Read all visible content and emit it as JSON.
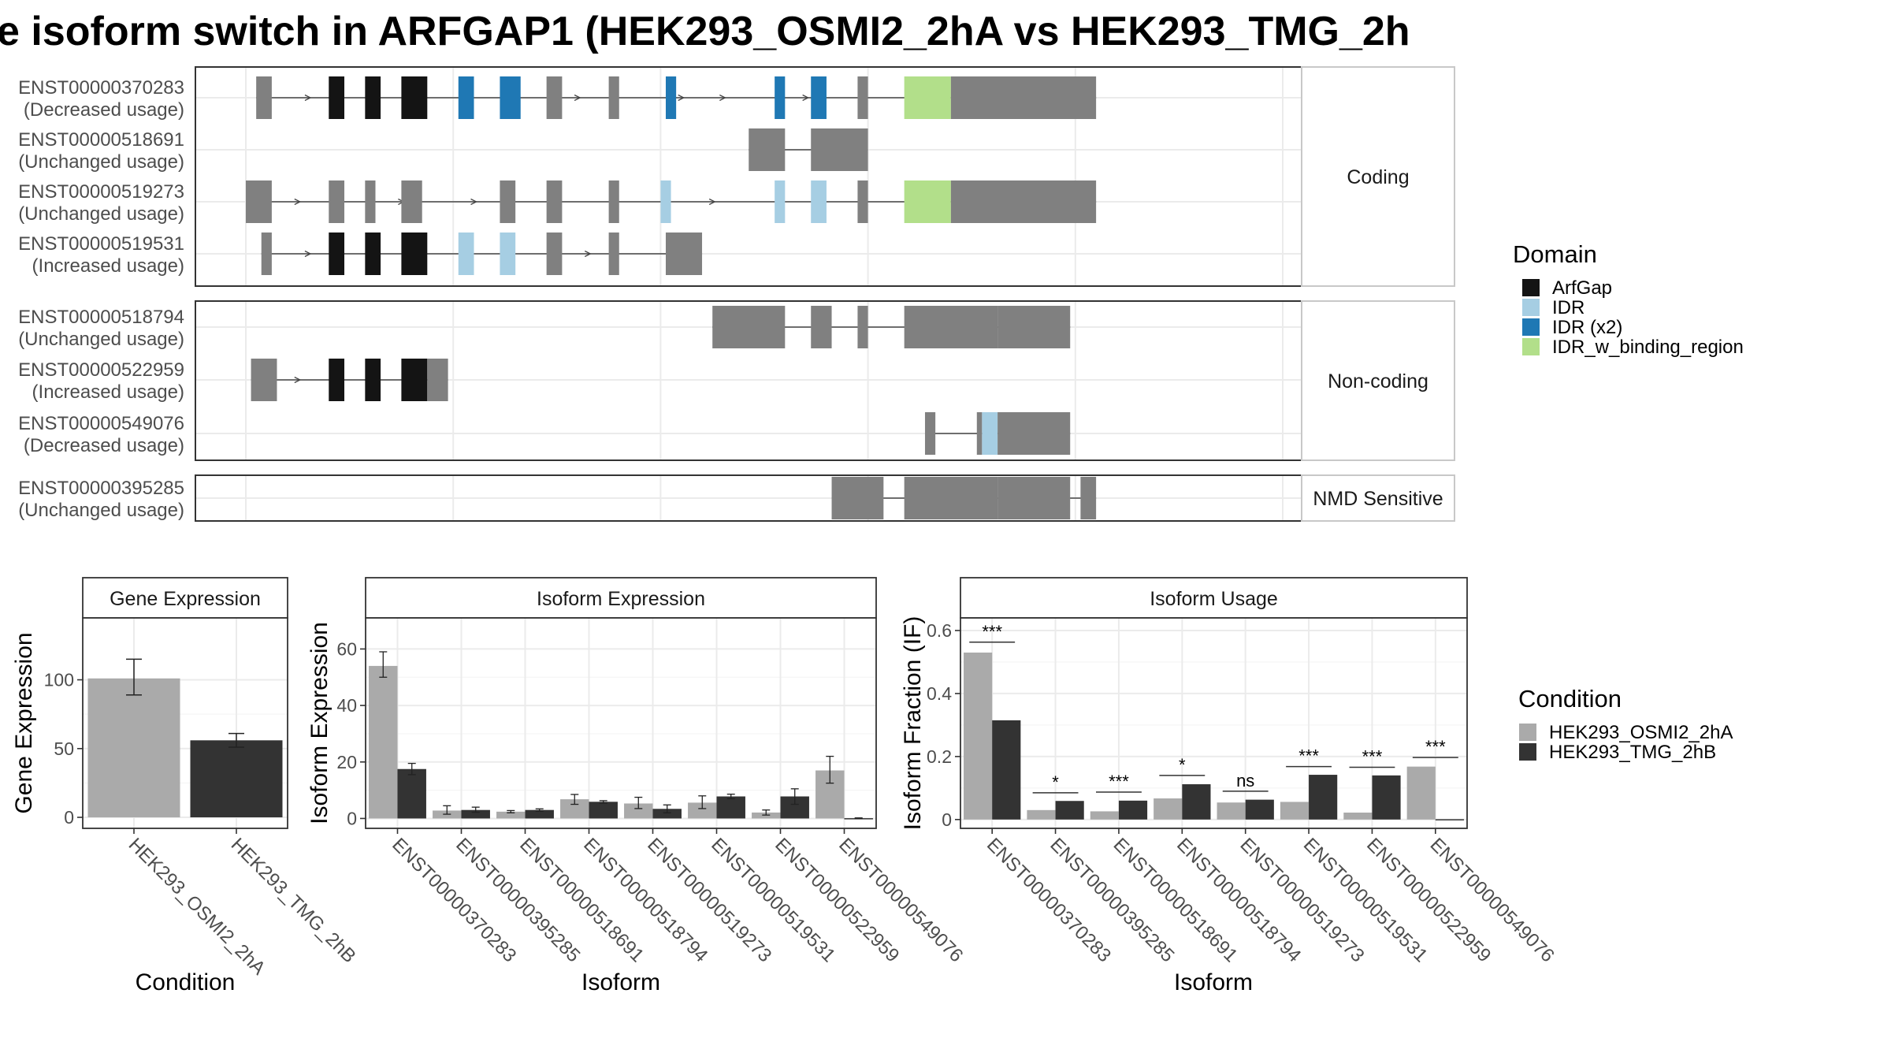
{
  "title": "e isoform switch in ARFGAP1 (HEK293_OSMI2_2hA vs HEK293_TMG_2h",
  "colors": {
    "ArfGap": "#141414",
    "IDR": "#a6cee3",
    "IDR (x2)": "#1f78b4",
    "IDR_w_binding_region": "#b2df8a",
    "exon": "#808080",
    "condition_a": "#aaaaaa",
    "condition_b": "#333333"
  },
  "structure": {
    "x_range": [
      0,
      100
    ],
    "facets": [
      {
        "label": "Coding",
        "transcripts": [
          {
            "id": "ENST00000370283",
            "usage": "(Decreased usage)",
            "intron": [
              1,
              82
            ],
            "arrows": [
              6,
              32,
              42,
              46,
              54
            ],
            "exons": [
              {
                "s": 1,
                "e": 2.5,
                "d": ""
              },
              {
                "s": 8,
                "e": 9.5,
                "d": "ArfGap"
              },
              {
                "s": 11.5,
                "e": 13,
                "d": "ArfGap"
              },
              {
                "s": 15,
                "e": 17.5,
                "d": "ArfGap"
              },
              {
                "s": 20.5,
                "e": 22,
                "d": "IDR (x2)"
              },
              {
                "s": 24.5,
                "e": 26.5,
                "d": "IDR (x2)"
              },
              {
                "s": 29,
                "e": 30.5,
                "d": ""
              },
              {
                "s": 35,
                "e": 36,
                "d": ""
              },
              {
                "s": 40.5,
                "e": 41.5,
                "d": "IDR (x2)"
              },
              {
                "s": 51,
                "e": 52,
                "d": "IDR (x2)"
              },
              {
                "s": 54.5,
                "e": 56,
                "d": "IDR (x2)"
              },
              {
                "s": 59,
                "e": 60,
                "d": ""
              },
              {
                "s": 63.5,
                "e": 68,
                "d": "IDR_w_binding_region"
              },
              {
                "s": 68,
                "e": 82,
                "d": ""
              }
            ]
          },
          {
            "id": "ENST00000518691",
            "usage": "(Unchanged usage)",
            "intron": [
              48.5,
              60
            ],
            "arrows": [],
            "exons": [
              {
                "s": 48.5,
                "e": 52,
                "d": ""
              },
              {
                "s": 54.5,
                "e": 60,
                "d": ""
              }
            ]
          },
          {
            "id": "ENST00000519273",
            "usage": "(Unchanged usage)",
            "intron": [
              0,
              82
            ],
            "arrows": [
              5,
              15,
              22,
              30,
              45
            ],
            "exons": [
              {
                "s": 0,
                "e": 2.5,
                "d": ""
              },
              {
                "s": 8,
                "e": 9.5,
                "d": ""
              },
              {
                "s": 11.5,
                "e": 12.5,
                "d": ""
              },
              {
                "s": 15,
                "e": 17,
                "d": ""
              },
              {
                "s": 24.5,
                "e": 26,
                "d": ""
              },
              {
                "s": 29,
                "e": 30.5,
                "d": ""
              },
              {
                "s": 35,
                "e": 36,
                "d": ""
              },
              {
                "s": 40,
                "e": 41,
                "d": "IDR"
              },
              {
                "s": 51,
                "e": 52,
                "d": "IDR"
              },
              {
                "s": 54.5,
                "e": 56,
                "d": "IDR"
              },
              {
                "s": 59,
                "e": 60,
                "d": ""
              },
              {
                "s": 63.5,
                "e": 68,
                "d": "IDR_w_binding_region"
              },
              {
                "s": 68,
                "e": 82,
                "d": ""
              }
            ]
          },
          {
            "id": "ENST00000519531",
            "usage": "(Increased usage)",
            "intron": [
              1.5,
              44
            ],
            "arrows": [
              6,
              33
            ],
            "exons": [
              {
                "s": 1.5,
                "e": 2.5,
                "d": ""
              },
              {
                "s": 8,
                "e": 9.5,
                "d": "ArfGap"
              },
              {
                "s": 11.5,
                "e": 13,
                "d": "ArfGap"
              },
              {
                "s": 15,
                "e": 17.5,
                "d": "ArfGap"
              },
              {
                "s": 20.5,
                "e": 22,
                "d": "IDR"
              },
              {
                "s": 24.5,
                "e": 26,
                "d": "IDR"
              },
              {
                "s": 29,
                "e": 30.5,
                "d": ""
              },
              {
                "s": 35,
                "e": 36,
                "d": ""
              },
              {
                "s": 40.5,
                "e": 44,
                "d": ""
              }
            ]
          }
        ]
      },
      {
        "label": "Non-coding",
        "transcripts": [
          {
            "id": "ENST00000518794",
            "usage": "(Unchanged usage)",
            "intron": [
              45,
              79.5
            ],
            "arrows": [],
            "exons": [
              {
                "s": 45,
                "e": 52,
                "d": ""
              },
              {
                "s": 54.5,
                "e": 56.5,
                "d": ""
              },
              {
                "s": 59,
                "e": 60,
                "d": ""
              },
              {
                "s": 63.5,
                "e": 72.5,
                "d": ""
              },
              {
                "s": 72.5,
                "e": 75,
                "d": ""
              },
              {
                "s": 75,
                "e": 79.5,
                "d": ""
              }
            ]
          },
          {
            "id": "ENST00000522959",
            "usage": "(Increased usage)",
            "intron": [
              0.5,
              19.5
            ],
            "arrows": [
              5
            ],
            "exons": [
              {
                "s": 0.5,
                "e": 3,
                "d": ""
              },
              {
                "s": 8,
                "e": 9.5,
                "d": "ArfGap"
              },
              {
                "s": 11.5,
                "e": 13,
                "d": "ArfGap"
              },
              {
                "s": 15,
                "e": 17.5,
                "d": "ArfGap"
              },
              {
                "s": 17.5,
                "e": 19.5,
                "d": ""
              }
            ]
          },
          {
            "id": "ENST00000549076",
            "usage": "(Decreased usage)",
            "intron": [
              65.5,
              79.5
            ],
            "arrows": [],
            "exons": [
              {
                "s": 65.5,
                "e": 66.5,
                "d": ""
              },
              {
                "s": 70.5,
                "e": 71,
                "d": ""
              },
              {
                "s": 71,
                "e": 72.5,
                "d": "IDR"
              },
              {
                "s": 72.5,
                "e": 75,
                "d": ""
              },
              {
                "s": 75,
                "e": 79.5,
                "d": ""
              }
            ]
          }
        ]
      },
      {
        "label": "NMD Sensitive",
        "transcripts": [
          {
            "id": "ENST00000395285",
            "usage": "(Unchanged usage)",
            "intron": [
              56.5,
              82
            ],
            "arrows": [],
            "exons": [
              {
                "s": 56.5,
                "e": 61.5,
                "d": ""
              },
              {
                "s": 63.5,
                "e": 72.5,
                "d": ""
              },
              {
                "s": 72.5,
                "e": 75,
                "d": ""
              },
              {
                "s": 75,
                "e": 79.5,
                "d": ""
              },
              {
                "s": 80.5,
                "e": 82,
                "d": ""
              }
            ]
          }
        ]
      }
    ]
  },
  "legend_domain": {
    "title": "Domain",
    "items": [
      "ArfGap",
      "IDR",
      "IDR (x2)",
      "IDR_w_binding_region"
    ]
  },
  "legend_condition": {
    "title": "Condition",
    "items": [
      "HEK293_OSMI2_2hA",
      "HEK293_TMG_2hB"
    ]
  },
  "chart_data": [
    {
      "type": "bar",
      "title": "Gene Expression",
      "xlabel": "Condition",
      "ylabel": "Gene Expression",
      "ylim": [
        -8,
        145
      ],
      "yticks": [
        0,
        50,
        100
      ],
      "categories": [
        "HEK293_OSMI2_2hA",
        "HEK293_TMG_2hB"
      ],
      "values": [
        101,
        56
      ],
      "err_low": [
        89,
        51
      ],
      "err_high": [
        115,
        61
      ]
    },
    {
      "type": "bar",
      "title": "Isoform Expression",
      "xlabel": "Isoform",
      "ylabel": "Isoform Expression",
      "ylim": [
        -3.5,
        71
      ],
      "yticks": [
        0,
        20,
        40,
        60
      ],
      "categories": [
        "ENST00000370283",
        "ENST00000395285",
        "ENST00000518691",
        "ENST00000518794",
        "ENST00000519273",
        "ENST00000519531",
        "ENST00000522959",
        "ENST00000549076"
      ],
      "series": [
        {
          "name": "HEK293_OSMI2_2hA",
          "values": [
            54,
            2.8,
            2.4,
            6.8,
            5.3,
            5.6,
            2.1,
            17
          ],
          "err_low": [
            50,
            1.5,
            2,
            5,
            3.5,
            3.5,
            1.2,
            12.5
          ],
          "err_high": [
            59,
            4.5,
            2.8,
            8.5,
            7.5,
            8,
            3,
            22
          ]
        },
        {
          "name": "HEK293_TMG_2hB",
          "values": [
            17.5,
            3,
            3,
            5.9,
            3.4,
            7.8,
            7.8,
            0.1
          ],
          "err_low": [
            15.5,
            2.2,
            2.6,
            5.4,
            2,
            7,
            5,
            0
          ],
          "err_high": [
            19.5,
            4,
            3.4,
            6.3,
            4.8,
            8.6,
            10.5,
            0.2
          ]
        }
      ]
    },
    {
      "type": "bar",
      "title": "Isoform Usage",
      "xlabel": "Isoform",
      "ylabel": "Isoform Fraction (IF)",
      "ylim": [
        -0.028,
        0.64
      ],
      "yticks": [
        0.0,
        0.2,
        0.4,
        0.6
      ],
      "categories": [
        "ENST00000370283",
        "ENST00000395285",
        "ENST00000518691",
        "ENST00000518794",
        "ENST00000519273",
        "ENST00000519531",
        "ENST00000522959",
        "ENST00000549076"
      ],
      "series": [
        {
          "name": "HEK293_OSMI2_2hA",
          "values": [
            0.53,
            0.03,
            0.026,
            0.067,
            0.054,
            0.056,
            0.022,
            0.168
          ]
        },
        {
          "name": "HEK293_TMG_2hB",
          "values": [
            0.315,
            0.059,
            0.06,
            0.112,
            0.063,
            0.142,
            0.14,
            0.001
          ]
        }
      ],
      "significance": [
        {
          "label": "***",
          "y": 0.563
        },
        {
          "label": "*",
          "y": 0.085
        },
        {
          "label": "***",
          "y": 0.087
        },
        {
          "label": "*",
          "y": 0.14
        },
        {
          "label": "ns",
          "y": 0.09
        },
        {
          "label": "***",
          "y": 0.168
        },
        {
          "label": "***",
          "y": 0.166
        },
        {
          "label": "***",
          "y": 0.197
        }
      ]
    }
  ]
}
